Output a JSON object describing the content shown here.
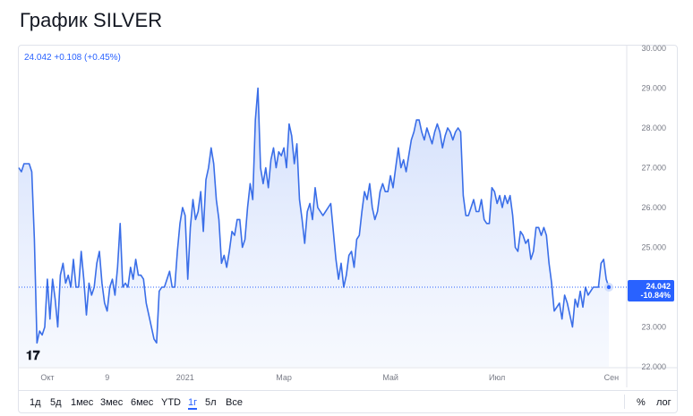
{
  "page": {
    "title": "График SILVER"
  },
  "legend": {
    "price": "24.042",
    "change": "+0.108",
    "change_pct": "(+0.45%)",
    "color": "#2962ff"
  },
  "last_price": {
    "value": "24.042",
    "change_pct": "-10.84%",
    "color": "#2962ff"
  },
  "toolbar": {
    "ranges": [
      "1д",
      "5д",
      "1мес",
      "3мес",
      "6мес",
      "YTD",
      "1г",
      "5л",
      "Все"
    ],
    "active_range": "1г",
    "right": [
      "%",
      "лог"
    ]
  },
  "logo_icon": "tradingview-logo",
  "chart_data": {
    "type": "area",
    "title": "",
    "xlabel": "",
    "ylabel": "",
    "ylim": [
      22,
      30
    ],
    "y_ticks": [
      "22.000",
      "23.000",
      "24.000",
      "25.000",
      "26.000",
      "27.000",
      "28.000",
      "29.000",
      "30.000"
    ],
    "x_ticks": [
      {
        "label": "Окт",
        "i": 11
      },
      {
        "label": "9",
        "i": 34
      },
      {
        "label": "2021",
        "i": 64
      },
      {
        "label": "Мар",
        "i": 102
      },
      {
        "label": "Май",
        "i": 143
      },
      {
        "label": "Июл",
        "i": 184
      },
      {
        "label": "Сен",
        "i": 228
      }
    ],
    "baseline": 24.0,
    "series": [
      {
        "line_color": "#3a6ee8",
        "fill_color": "#dbe6fd",
        "values": [
          27.0,
          26.9,
          27.1,
          27.1,
          27.1,
          26.9,
          25.2,
          22.6,
          22.9,
          22.8,
          23.0,
          24.2,
          23.2,
          24.2,
          23.7,
          23.0,
          24.3,
          24.6,
          24.1,
          24.3,
          24.0,
          24.7,
          24.0,
          24.0,
          24.9,
          24.2,
          23.3,
          24.1,
          23.8,
          24.0,
          24.6,
          24.9,
          24.1,
          23.6,
          23.4,
          24.0,
          24.2,
          23.8,
          24.5,
          25.6,
          24.0,
          24.1,
          24.0,
          24.5,
          24.2,
          24.7,
          24.3,
          24.3,
          24.2,
          23.6,
          23.3,
          23.0,
          22.7,
          22.6,
          23.9,
          24.0,
          24.0,
          24.2,
          24.4,
          24.0,
          24.0,
          24.9,
          25.6,
          26.0,
          25.8,
          24.2,
          25.5,
          26.2,
          25.7,
          25.9,
          26.4,
          25.4,
          26.7,
          27.0,
          27.5,
          27.1,
          26.2,
          25.7,
          24.6,
          24.8,
          24.5,
          24.9,
          25.4,
          25.3,
          25.7,
          25.7,
          25.0,
          25.2,
          26.0,
          26.6,
          26.2,
          28.2,
          29.0,
          27.0,
          26.6,
          27.0,
          26.5,
          27.2,
          27.5,
          27.0,
          27.4,
          27.3,
          27.5,
          27.0,
          28.1,
          27.8,
          27.1,
          27.6,
          26.2,
          25.7,
          25.1,
          25.9,
          26.1,
          25.7,
          26.5,
          26.0,
          25.9,
          25.8,
          25.9,
          26.0,
          26.1,
          25.4,
          24.7,
          24.2,
          24.6,
          24.0,
          24.3,
          24.8,
          24.9,
          24.5,
          25.2,
          25.3,
          25.9,
          26.4,
          26.2,
          26.6,
          26.0,
          25.7,
          25.9,
          26.4,
          26.6,
          26.4,
          26.4,
          26.8,
          26.5,
          27.0,
          27.5,
          27.0,
          27.2,
          26.9,
          27.3,
          27.7,
          27.9,
          28.2,
          28.2,
          27.9,
          27.7,
          28.0,
          27.8,
          27.6,
          27.9,
          28.1,
          27.9,
          27.5,
          27.8,
          28.0,
          27.9,
          27.7,
          27.9,
          28.0,
          27.9,
          26.3,
          25.8,
          25.8,
          26.0,
          26.2,
          25.9,
          25.9,
          26.2,
          25.7,
          25.6,
          25.6,
          26.5,
          26.4,
          26.1,
          26.3,
          26.0,
          26.3,
          26.1,
          26.3,
          25.8,
          25.0,
          24.9,
          25.4,
          25.3,
          25.1,
          25.2,
          24.7,
          24.9,
          25.5,
          25.5,
          25.3,
          25.5,
          25.3,
          24.6,
          24.1,
          23.4,
          23.5,
          23.6,
          23.2,
          23.8,
          23.6,
          23.3,
          23.0,
          23.7,
          23.5,
          23.9,
          23.5,
          24.0,
          23.8,
          23.9,
          24.0,
          24.0,
          24.0,
          24.6,
          24.7,
          24.2,
          24.0
        ]
      }
    ]
  }
}
